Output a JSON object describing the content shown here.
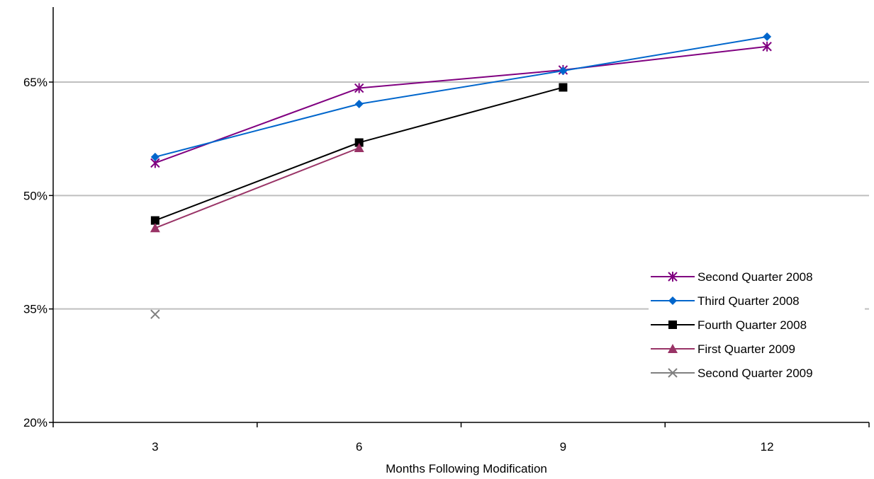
{
  "chart_data": {
    "type": "line",
    "title": "",
    "xlabel": "Months Following Modification",
    "ylabel": "",
    "categories": [
      "3",
      "6",
      "9",
      "12"
    ],
    "y_ticks": [
      "20%",
      "35%",
      "50%",
      "65%"
    ],
    "ylim": [
      20,
      77
    ],
    "grid": true,
    "legend_position": "bottom-right",
    "series": [
      {
        "name": "Second Quarter 2008",
        "marker": "asterisk",
        "color": "#800080",
        "values": [
          54.3,
          64.2,
          66.6,
          69.7
        ]
      },
      {
        "name": "Third Quarter 2008",
        "marker": "diamond",
        "color": "#0066CC",
        "values": [
          55.1,
          62.1,
          66.5,
          71.0
        ]
      },
      {
        "name": "Fourth Quarter 2008",
        "marker": "square",
        "color": "#000000",
        "values": [
          46.7,
          57.0,
          64.3,
          null
        ]
      },
      {
        "name": "First Quarter 2009",
        "marker": "triangle",
        "color": "#993366",
        "values": [
          45.7,
          56.3,
          null,
          null
        ]
      },
      {
        "name": "Second Quarter 2009",
        "marker": "x",
        "color": "#808080",
        "values": [
          34.3,
          null,
          null,
          null
        ]
      }
    ]
  }
}
